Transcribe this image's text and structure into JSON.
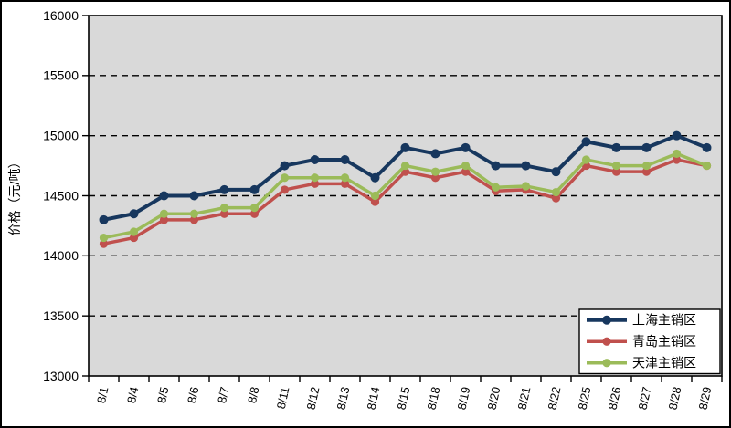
{
  "chart_data": {
    "type": "line",
    "title": "",
    "xlabel": "",
    "ylabel": "价格（元/吨）",
    "ylim": [
      13000,
      16000
    ],
    "ytick_step": 500,
    "ytick_labels": [
      "13000",
      "13500",
      "14000",
      "14500",
      "15000",
      "15500",
      "16000"
    ],
    "grid": "horizontal-dashed",
    "legend_position": "bottom-right",
    "plot_bg": "#d9d9d9",
    "outer_bg": "#ffffff",
    "axis_color": "#000000",
    "categories": [
      "8/1",
      "8/4",
      "8/5",
      "8/6",
      "8/7",
      "8/8",
      "8/11",
      "8/12",
      "8/13",
      "8/14",
      "8/15",
      "8/18",
      "8/19",
      "8/20",
      "8/21",
      "8/22",
      "8/25",
      "8/26",
      "8/27",
      "8/28",
      "8/29"
    ],
    "series": [
      {
        "name": "上海主销区",
        "color": "#17375e",
        "values": [
          14300,
          14350,
          14500,
          14500,
          14550,
          14550,
          14750,
          14800,
          14800,
          14650,
          14900,
          14850,
          14900,
          14750,
          14750,
          14700,
          14950,
          14900,
          14900,
          15000,
          14900
        ]
      },
      {
        "name": "青岛主销区",
        "color": "#c0504d",
        "values": [
          14100,
          14150,
          14300,
          14300,
          14350,
          14350,
          14550,
          14600,
          14600,
          14450,
          14700,
          14650,
          14700,
          14540,
          14550,
          14480,
          14750,
          14700,
          14700,
          14800,
          14750
        ]
      },
      {
        "name": "天津主销区",
        "color": "#9bbb59",
        "values": [
          14150,
          14200,
          14350,
          14350,
          14400,
          14400,
          14650,
          14650,
          14650,
          14500,
          14750,
          14700,
          14750,
          14570,
          14580,
          14530,
          14800,
          14750,
          14750,
          14850,
          14750
        ]
      }
    ]
  }
}
